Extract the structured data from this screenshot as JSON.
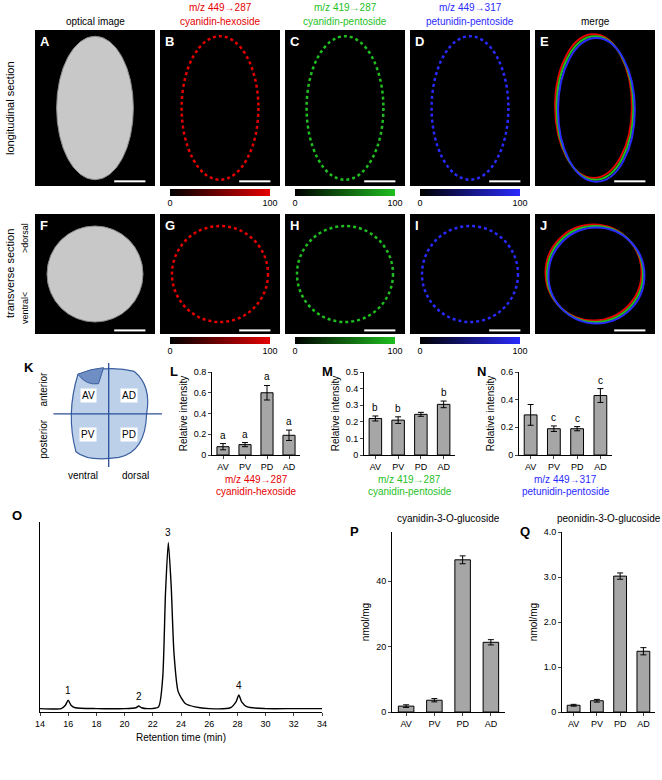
{
  "chart_data": [
    {
      "type": "image",
      "row_label": "longitudinal section",
      "panels": [
        {
          "panel": "A",
          "title": "optical image",
          "color": "#c8c8c8"
        },
        {
          "panel": "B",
          "title": "m/z 449→287",
          "subtitle": "cyanidin-hexoside",
          "color": "#e60000",
          "colorbar": {
            "range": [
              0,
              100
            ],
            "ticks": [
              0,
              100
            ]
          }
        },
        {
          "panel": "C",
          "title": "m/z 419→287",
          "subtitle": "cyanidin-pentoside",
          "color": "#1fbf1f",
          "colorbar": {
            "range": [
              0,
              100
            ],
            "ticks": [
              0,
              100
            ]
          }
        },
        {
          "panel": "D",
          "title": "m/z 449→317",
          "subtitle": "petunidin-pentoside",
          "color": "#2a2aff",
          "colorbar": {
            "range": [
              0,
              100
            ],
            "ticks": [
              0,
              100
            ]
          }
        },
        {
          "panel": "E",
          "title": "merge",
          "colors": [
            "#e60000",
            "#1fbf1f",
            "#2a2aff"
          ]
        }
      ]
    },
    {
      "type": "image",
      "row_label": "transverse section",
      "row_label_ends": [
        ">dorsal",
        "ventral<"
      ],
      "panels": [
        {
          "panel": "F",
          "color": "#c8c8c8"
        },
        {
          "panel": "G",
          "color": "#e60000",
          "colorbar": {
            "range": [
              0,
              100
            ],
            "ticks": [
              0,
              100
            ]
          }
        },
        {
          "panel": "H",
          "color": "#1fbf1f",
          "colorbar": {
            "range": [
              0,
              100
            ],
            "ticks": [
              0,
              100
            ]
          }
        },
        {
          "panel": "I",
          "color": "#2a2aff",
          "colorbar": {
            "range": [
              0,
              100
            ],
            "ticks": [
              0,
              100
            ]
          }
        },
        {
          "panel": "J",
          "colors": [
            "#e60000",
            "#1fbf1f",
            "#2a2aff"
          ]
        }
      ]
    },
    {
      "type": "diagram",
      "panel": "K",
      "regions": [
        "AV",
        "AD",
        "PV",
        "PD"
      ],
      "axis_labels": {
        "top": "anterior",
        "bottom": "posterior",
        "left": "ventral",
        "right": "dorsal"
      }
    },
    {
      "type": "bar",
      "panel": "L",
      "categories": [
        "AV",
        "PV",
        "PD",
        "AD"
      ],
      "values": [
        0.08,
        0.1,
        0.6,
        0.19
      ],
      "errors": [
        0.03,
        0.02,
        0.07,
        0.05
      ],
      "color": "#a6a6a6",
      "ylim": [
        0,
        0.8
      ],
      "yticks": [
        0,
        0.2,
        0.4,
        0.6,
        0.8
      ],
      "grid": false,
      "y_label": "Relative intensity",
      "x_label": "m/z 449→287",
      "x_sublabel": "cyanidin-hexoside",
      "annotations": [
        {
          "category": "AV",
          "text": "a"
        },
        {
          "category": "PV",
          "text": "a"
        },
        {
          "category": "PD",
          "text": "a"
        },
        {
          "category": "AD",
          "text": "a"
        }
      ]
    },
    {
      "type": "bar",
      "panel": "M",
      "categories": [
        "AV",
        "PV",
        "PD",
        "AD"
      ],
      "values": [
        0.22,
        0.21,
        0.245,
        0.305
      ],
      "errors": [
        0.015,
        0.02,
        0.012,
        0.02
      ],
      "color": "#a6a6a6",
      "ylim": [
        0,
        0.5
      ],
      "yticks": [
        0,
        0.1,
        0.2,
        0.3,
        0.4,
        0.5
      ],
      "grid": false,
      "y_label": "Relative intensity",
      "x_label": "m/z 419→287",
      "x_sublabel": "cyanidin-pentoside",
      "annotations": [
        {
          "category": "AV",
          "text": "b"
        },
        {
          "category": "PV",
          "text": "b"
        },
        {
          "category": "AD",
          "text": "b"
        }
      ]
    },
    {
      "type": "bar",
      "panel": "N",
      "categories": [
        "AV",
        "PV",
        "PD",
        "AD"
      ],
      "values": [
        0.29,
        0.19,
        0.19,
        0.43
      ],
      "errors": [
        0.075,
        0.02,
        0.015,
        0.05
      ],
      "color": "#a6a6a6",
      "ylim": [
        0,
        0.6
      ],
      "yticks": [
        0,
        0.2,
        0.4,
        0.6
      ],
      "grid": false,
      "y_label": "Relative intensity",
      "x_label": "m/z 449→317",
      "x_sublabel": "petunidin-pentoside",
      "annotations": [
        {
          "category": "PV",
          "text": "c"
        },
        {
          "category": "PD",
          "text": "c"
        },
        {
          "category": "AD",
          "text": "c"
        }
      ]
    },
    {
      "type": "line",
      "panel": "O",
      "color": "#000000",
      "x": [
        14,
        15.5,
        15.8,
        16,
        16.2,
        16.5,
        18,
        20,
        20.8,
        21,
        21.2,
        21.6,
        22.4,
        22.7,
        22.9,
        23.1,
        23.3,
        23.5,
        23.8,
        24.3,
        25,
        26,
        27.5,
        27.9,
        28.1,
        28.3,
        28.7,
        30,
        32,
        34
      ],
      "values": [
        0.02,
        0.02,
        0.04,
        0.07,
        0.04,
        0.025,
        0.02,
        0.02,
        0.025,
        0.035,
        0.025,
        0.02,
        0.03,
        0.2,
        0.7,
        1.0,
        0.75,
        0.35,
        0.12,
        0.05,
        0.03,
        0.02,
        0.025,
        0.06,
        0.1,
        0.06,
        0.03,
        0.02,
        0.02,
        0.02
      ],
      "xlim": [
        14,
        34
      ],
      "xticks": [
        14,
        16,
        18,
        20,
        22,
        24,
        26,
        28,
        30,
        32,
        34
      ],
      "ylim": [
        0,
        1.12
      ],
      "tick_labels": "x",
      "x_label": "Retention time (min)",
      "annotations": [
        {
          "x": 16,
          "text": "1"
        },
        {
          "x": 21,
          "text": "2"
        },
        {
          "x": 23.1,
          "text": "3"
        },
        {
          "x": 28.1,
          "text": "4"
        }
      ]
    },
    {
      "type": "bar",
      "panel": "P",
      "title": "cyanidin-3-O-glucoside",
      "categories": [
        "AV",
        "PV",
        "PD",
        "AD"
      ],
      "values": [
        1.8,
        3.6,
        46.5,
        21.3
      ],
      "errors": [
        0.4,
        0.5,
        1.2,
        0.8
      ],
      "color": "#a6a6a6",
      "ylim": [
        0,
        55
      ],
      "yticks": [
        0,
        20,
        40
      ],
      "grid": false,
      "y_label": "nmol/mg"
    },
    {
      "type": "bar",
      "panel": "Q",
      "title": "peonidin-3-O-glucoside",
      "categories": [
        "AV",
        "PV",
        "PD",
        "AD"
      ],
      "values": [
        0.15,
        0.25,
        3.02,
        1.35
      ],
      "errors": [
        0.02,
        0.03,
        0.07,
        0.08
      ],
      "color": "#a6a6a6",
      "ylim": [
        0,
        4
      ],
      "yticks": [
        0,
        {
          "value": 1,
          "label": "1.0"
        },
        {
          "value": 2,
          "label": "2.0"
        },
        {
          "value": 3,
          "label": "3.0"
        },
        {
          "value": 4,
          "label": "4.0"
        }
      ],
      "grid": false,
      "y_label": "nmol/mg"
    }
  ]
}
